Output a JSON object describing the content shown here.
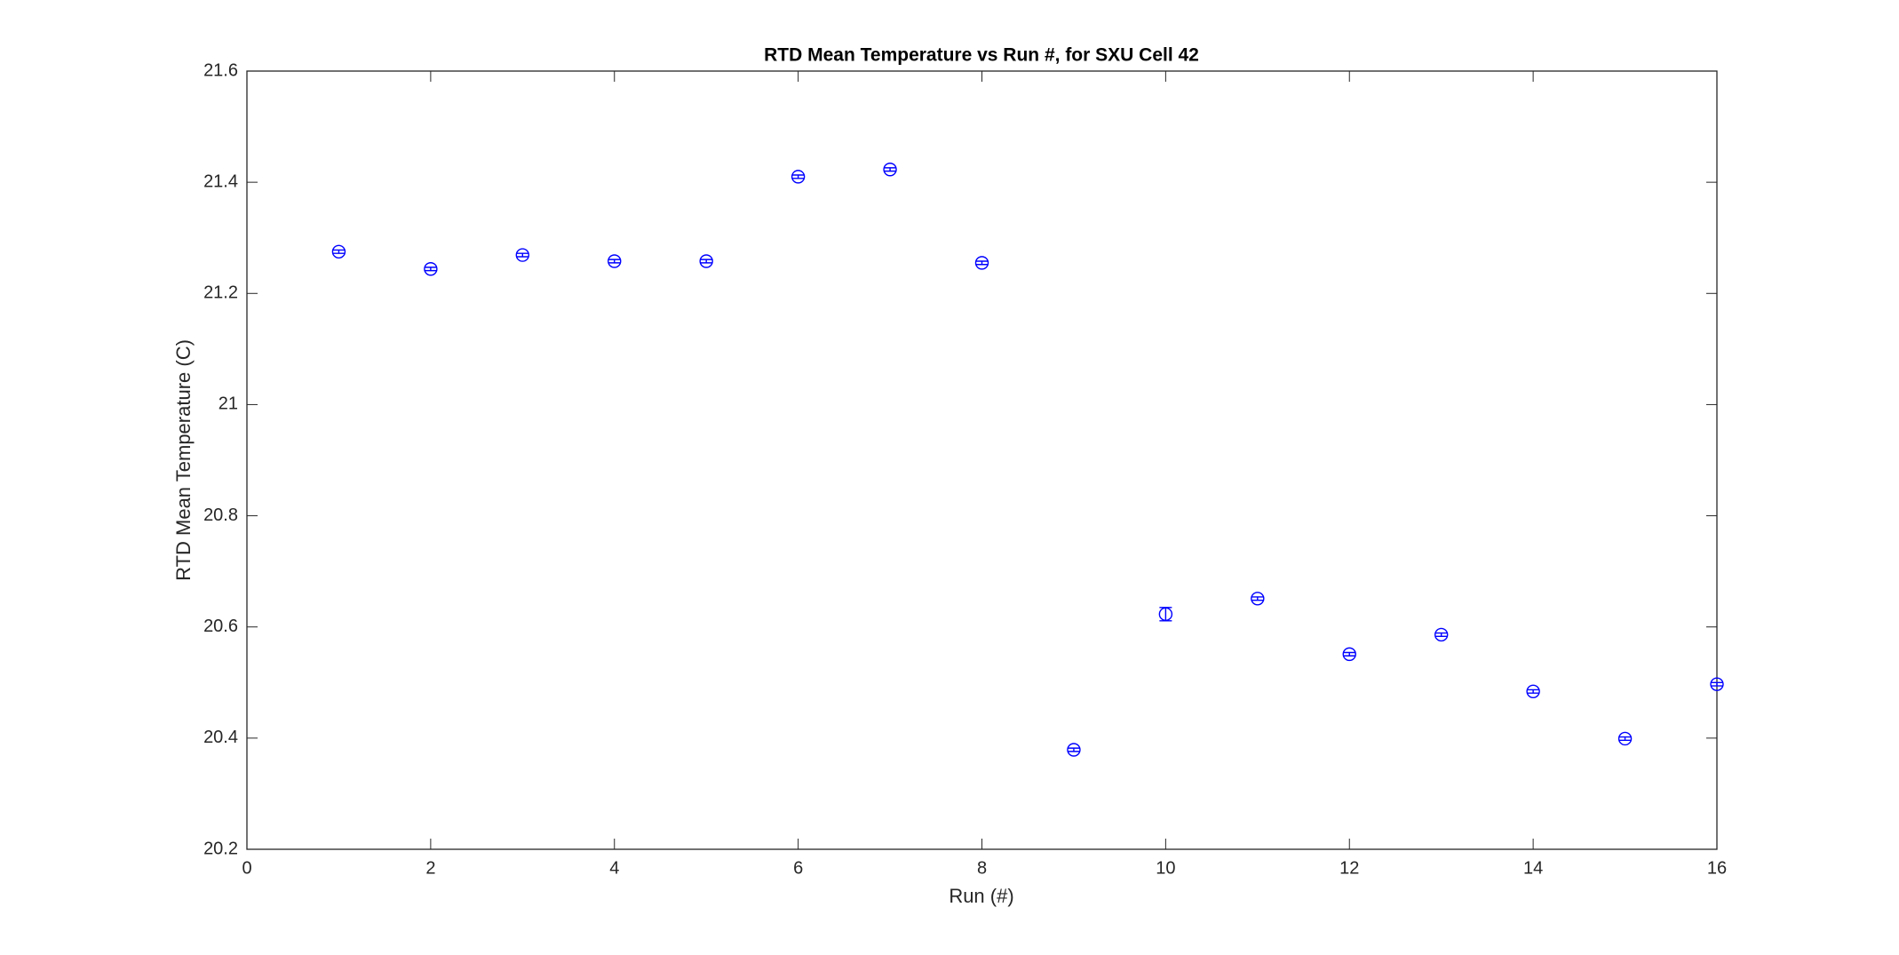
{
  "chart_data": {
    "type": "errorbar",
    "title": "RTD Mean Temperature vs Run #, for SXU Cell 42",
    "x_label": "Run (#)",
    "y_label": "RTD Mean Temperature (C)",
    "x": [
      1,
      2,
      3,
      4,
      5,
      6,
      7,
      8,
      9,
      10,
      11,
      12,
      13,
      14,
      15,
      16
    ],
    "values": [
      21.275,
      21.244,
      21.269,
      21.258,
      21.258,
      21.41,
      21.423,
      21.255,
      20.379,
      20.623,
      20.651,
      20.551,
      20.586,
      20.484,
      20.399,
      20.497
    ],
    "errors": [
      0.003,
      0.003,
      0.003,
      0.003,
      0.003,
      0.003,
      0.003,
      0.003,
      0.003,
      0.012,
      0.003,
      0.003,
      0.003,
      0.003,
      0.003,
      0.003
    ],
    "color": "#0000ff",
    "xlim": [
      0,
      16
    ],
    "xticks": [
      0,
      2,
      4,
      6,
      8,
      10,
      12,
      14,
      16
    ],
    "ylim": [
      20.2,
      21.6
    ],
    "yticks": [
      20.2,
      20.4,
      20.6,
      20.8,
      21,
      21.2,
      21.4,
      21.6
    ],
    "grid": false
  }
}
